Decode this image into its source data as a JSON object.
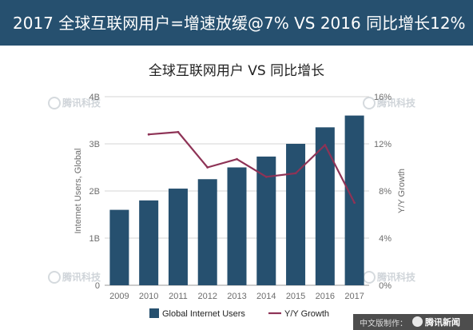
{
  "header": {
    "title": "2017 全球互联网用户=增速放缓@7% VS 2016 同比增长12%"
  },
  "watermark": {
    "text": "腾讯科技"
  },
  "footer": {
    "label": "中文版制作：",
    "brand": "腾讯新闻"
  },
  "chart_data": {
    "type": "bar",
    "title": "全球互联网用户 VS 同比增长",
    "categories": [
      "2009",
      "2010",
      "2011",
      "2012",
      "2013",
      "2014",
      "2015",
      "2016",
      "2017"
    ],
    "ylabel": "Internet Users, Global",
    "y2label": "Y/Y Growth",
    "ylim": [
      0,
      4
    ],
    "y2lim": [
      0,
      16
    ],
    "yticks": [
      "0",
      "1B",
      "2B",
      "3B",
      "4B"
    ],
    "y2ticks": [
      "0%",
      "4%",
      "8%",
      "12%",
      "16%"
    ],
    "grid": true,
    "legend": "bottom",
    "series": [
      {
        "name": "Global Internet Users",
        "type": "bar",
        "axis": "left",
        "color": "#26506f",
        "values": [
          1.6,
          1.8,
          2.05,
          2.25,
          2.5,
          2.73,
          3.0,
          3.35,
          3.6
        ]
      },
      {
        "name": "Y/Y Growth",
        "type": "line",
        "axis": "right",
        "color": "#8e3356",
        "values": [
          null,
          12.8,
          13.0,
          10.0,
          10.7,
          9.2,
          9.5,
          11.9,
          7.0
        ]
      }
    ]
  }
}
